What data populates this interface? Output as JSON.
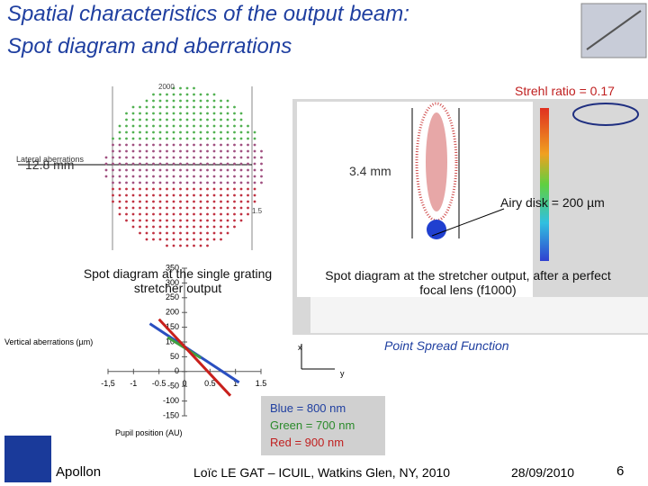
{
  "title": [
    "Spatial characteristics of the output beam:",
    "Spot diagram and aberrations"
  ],
  "annotations": {
    "strehl": "Strehl ratio = 0.17",
    "lateral": "Lateral aberrations",
    "width1": "12.8 mm",
    "width2": "3.4 mm",
    "airy": "Airy disk = 200 µm",
    "scale_top": "2000",
    "scale_mid": "1.5"
  },
  "captions": {
    "left": "Spot diagram at the single grating stretcher output",
    "right": "Spot diagram at the stretcher output, after a perfect focal lens (f1000)",
    "psf": "Point Spread Function"
  },
  "psf_axes": {
    "x": "x",
    "y": "y"
  },
  "legend": [
    "Blue = 800 nm",
    "Green = 700 nm",
    "Red = 900 nm"
  ],
  "chart_data": {
    "type": "line",
    "y_label": "Vertical aberrations (µm)",
    "x_label": "Pupil position (AU)",
    "xlim": [
      -1.5,
      1.5
    ],
    "ylim": [
      -150,
      350
    ],
    "xticks": [
      {
        "value": -1.5,
        "label": "-1,5"
      },
      -1,
      -0.5,
      0,
      0.5,
      1,
      1.5
    ],
    "yticks": [
      350,
      300,
      250,
      200,
      150,
      100,
      50,
      0,
      -50,
      -100,
      -150
    ],
    "series": [
      {
        "name": "Blue",
        "color": "#2a4fc0",
        "x": [
          -0.68,
          1.07
        ],
        "values": [
          162,
          -37
        ]
      },
      {
        "name": "Green",
        "color": "#3fa040",
        "x": [
          -0.33,
          0.32
        ],
        "values": [
          116,
          46
        ]
      },
      {
        "name": "Red",
        "color": "#c8201c",
        "x": [
          -0.5,
          0.9
        ],
        "values": [
          177,
          -82
        ]
      }
    ]
  },
  "footer": {
    "org": "Apollon",
    "author": "Loïc LE GAT – ICUIL, Watkins Glen, NY, 2010",
    "date": "28/09/2010",
    "page": "6"
  }
}
